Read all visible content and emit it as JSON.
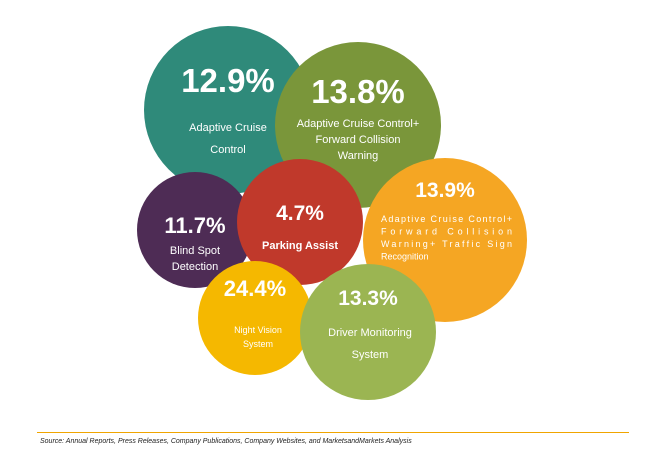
{
  "chart_data": {
    "type": "bubble",
    "title": "",
    "categories": [
      "Adaptive Cruise Control",
      "Adaptive Cruise Control+ Forward Collision Warning",
      "Blind Spot Detection",
      "Parking Assist",
      "Adaptive Cruise Control+ Forward Collision Warning+ Traffic Sign Recognition",
      "Night Vision System",
      "Driver Monitoring System"
    ],
    "values": [
      12.9,
      13.8,
      11.7,
      4.7,
      13.9,
      24.4,
      13.3
    ],
    "unit": "%",
    "bubbles": [
      {
        "value_label": "12.9%",
        "label_lines": [
          "Adaptive Cruise",
          "Control"
        ],
        "color": "#2f8a7a"
      },
      {
        "value_label": "13.8%",
        "label_lines": [
          "Adaptive Cruise Control+",
          "Forward Collision",
          "Warning"
        ],
        "color": "#7a963a"
      },
      {
        "value_label": "11.7%",
        "label_lines": [
          "Blind Spot",
          "Detection"
        ],
        "color": "#4e2c55"
      },
      {
        "value_label": "4.7%",
        "label_lines": [
          "Parking Assist"
        ],
        "color": "#c0392b"
      },
      {
        "value_label": "13.9%",
        "label_lines": [
          "Adaptive   Cruise   Control+",
          "Forward                Collision",
          "Warning+   Traffic   Sign",
          "Recognition"
        ],
        "color": "#f5a623"
      },
      {
        "value_label": "24.4%",
        "label_lines": [
          "Night Vision",
          "System"
        ],
        "color": "#f5b800"
      },
      {
        "value_label": "13.3%",
        "label_lines": [
          "Driver Monitoring",
          "System"
        ],
        "color": "#9bb552"
      }
    ]
  },
  "source": "Source: Annual Reports, Press Releases, Company Publications, Company Websites, and MarketsandMarkets Analysis",
  "colors": {
    "rule": "#f0a500"
  }
}
